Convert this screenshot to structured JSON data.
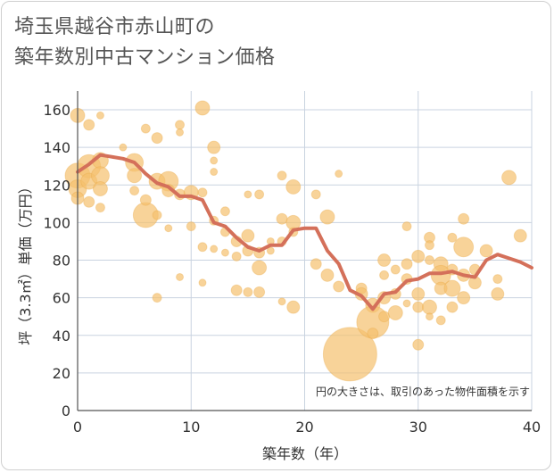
{
  "chart_data": {
    "type": "scatter",
    "title": "埼玉県越谷市赤山町の\n築年数別中古マンション価格",
    "title_lines": [
      "埼玉県越谷市赤山町の",
      "築年数別中古マンション価格"
    ],
    "xlabel": "築年数（年）",
    "ylabel": "坪（3.3㎡）単価（万円）",
    "annotation": "円の大きさは、取引のあった物件面積を示す",
    "xlim": [
      0,
      40
    ],
    "ylim": [
      0,
      170
    ],
    "x_ticks": [
      0,
      10,
      20,
      30,
      40
    ],
    "y_ticks": [
      0,
      20,
      40,
      60,
      80,
      100,
      120,
      140,
      160
    ],
    "grid": true,
    "colors": {
      "bubble": "#f5c06e",
      "line": "#d4705a",
      "grid": "#c9d3e0",
      "axis": "#555555"
    },
    "series": [
      {
        "kind": "bubbles",
        "points": [
          {
            "x": 0,
            "y": 157,
            "s": 8
          },
          {
            "x": 0,
            "y": 125,
            "s": 14
          },
          {
            "x": 0,
            "y": 118,
            "s": 10
          },
          {
            "x": 0,
            "y": 113,
            "s": 7
          },
          {
            "x": 1,
            "y": 152,
            "s": 6
          },
          {
            "x": 1,
            "y": 130,
            "s": 13
          },
          {
            "x": 1,
            "y": 122,
            "s": 9
          },
          {
            "x": 1,
            "y": 111,
            "s": 6
          },
          {
            "x": 2,
            "y": 157,
            "s": 4
          },
          {
            "x": 2,
            "y": 133,
            "s": 9
          },
          {
            "x": 2,
            "y": 125,
            "s": 10
          },
          {
            "x": 2,
            "y": 118,
            "s": 8
          },
          {
            "x": 2,
            "y": 108,
            "s": 5
          },
          {
            "x": 4,
            "y": 140,
            "s": 4
          },
          {
            "x": 5,
            "y": 132,
            "s": 10
          },
          {
            "x": 5,
            "y": 125,
            "s": 8
          },
          {
            "x": 5,
            "y": 117,
            "s": 5
          },
          {
            "x": 6,
            "y": 150,
            "s": 5
          },
          {
            "x": 6,
            "y": 104,
            "s": 14
          },
          {
            "x": 6,
            "y": 112,
            "s": 6
          },
          {
            "x": 7,
            "y": 145,
            "s": 6
          },
          {
            "x": 7,
            "y": 122,
            "s": 9
          },
          {
            "x": 7,
            "y": 104,
            "s": 5
          },
          {
            "x": 7,
            "y": 60,
            "s": 5
          },
          {
            "x": 8,
            "y": 122,
            "s": 11
          },
          {
            "x": 8,
            "y": 117,
            "s": 7
          },
          {
            "x": 8,
            "y": 97,
            "s": 4
          },
          {
            "x": 9,
            "y": 152,
            "s": 5
          },
          {
            "x": 9,
            "y": 148,
            "s": 4
          },
          {
            "x": 9,
            "y": 115,
            "s": 6
          },
          {
            "x": 9,
            "y": 71,
            "s": 4
          },
          {
            "x": 10,
            "y": 116,
            "s": 8
          },
          {
            "x": 10,
            "y": 98,
            "s": 5
          },
          {
            "x": 11,
            "y": 161,
            "s": 8
          },
          {
            "x": 11,
            "y": 116,
            "s": 5
          },
          {
            "x": 11,
            "y": 87,
            "s": 5
          },
          {
            "x": 11,
            "y": 68,
            "s": 4
          },
          {
            "x": 12,
            "y": 140,
            "s": 7
          },
          {
            "x": 12,
            "y": 133,
            "s": 4
          },
          {
            "x": 12,
            "y": 127,
            "s": 4
          },
          {
            "x": 12,
            "y": 101,
            "s": 5
          },
          {
            "x": 12,
            "y": 86,
            "s": 4
          },
          {
            "x": 13,
            "y": 106,
            "s": 5
          },
          {
            "x": 13,
            "y": 95,
            "s": 5
          },
          {
            "x": 13,
            "y": 84,
            "s": 4
          },
          {
            "x": 14,
            "y": 90,
            "s": 6
          },
          {
            "x": 14,
            "y": 82,
            "s": 5
          },
          {
            "x": 14,
            "y": 64,
            "s": 6
          },
          {
            "x": 15,
            "y": 115,
            "s": 4
          },
          {
            "x": 15,
            "y": 93,
            "s": 7
          },
          {
            "x": 15,
            "y": 85,
            "s": 6
          },
          {
            "x": 15,
            "y": 63,
            "s": 5
          },
          {
            "x": 16,
            "y": 115,
            "s": 5
          },
          {
            "x": 16,
            "y": 84,
            "s": 6
          },
          {
            "x": 16,
            "y": 76,
            "s": 8
          },
          {
            "x": 16,
            "y": 63,
            "s": 6
          },
          {
            "x": 17,
            "y": 90,
            "s": 4
          },
          {
            "x": 17,
            "y": 85,
            "s": 4
          },
          {
            "x": 18,
            "y": 125,
            "s": 5
          },
          {
            "x": 18,
            "y": 102,
            "s": 6
          },
          {
            "x": 18,
            "y": 90,
            "s": 5
          },
          {
            "x": 18,
            "y": 58,
            "s": 4
          },
          {
            "x": 19,
            "y": 119,
            "s": 8
          },
          {
            "x": 19,
            "y": 100,
            "s": 8
          },
          {
            "x": 19,
            "y": 95,
            "s": 5
          },
          {
            "x": 19,
            "y": 55,
            "s": 7
          },
          {
            "x": 21,
            "y": 115,
            "s": 5
          },
          {
            "x": 21,
            "y": 78,
            "s": 6
          },
          {
            "x": 22,
            "y": 103,
            "s": 8
          },
          {
            "x": 22,
            "y": 72,
            "s": 7
          },
          {
            "x": 23,
            "y": 126,
            "s": 4
          },
          {
            "x": 23,
            "y": 66,
            "s": 6
          },
          {
            "x": 24,
            "y": 30,
            "s": 30
          },
          {
            "x": 25,
            "y": 65,
            "s": 6
          },
          {
            "x": 25,
            "y": 62,
            "s": 7
          },
          {
            "x": 26,
            "y": 56,
            "s": 8
          },
          {
            "x": 26,
            "y": 47,
            "s": 18
          },
          {
            "x": 26,
            "y": 41,
            "s": 6
          },
          {
            "x": 27,
            "y": 80,
            "s": 7
          },
          {
            "x": 27,
            "y": 72,
            "s": 5
          },
          {
            "x": 27,
            "y": 60,
            "s": 7
          },
          {
            "x": 27,
            "y": 50,
            "s": 6
          },
          {
            "x": 28,
            "y": 75,
            "s": 5
          },
          {
            "x": 28,
            "y": 62,
            "s": 6
          },
          {
            "x": 28,
            "y": 52,
            "s": 8
          },
          {
            "x": 29,
            "y": 98,
            "s": 5
          },
          {
            "x": 29,
            "y": 78,
            "s": 6
          },
          {
            "x": 29,
            "y": 70,
            "s": 6
          },
          {
            "x": 29,
            "y": 57,
            "s": 4
          },
          {
            "x": 30,
            "y": 82,
            "s": 7
          },
          {
            "x": 30,
            "y": 62,
            "s": 7
          },
          {
            "x": 30,
            "y": 55,
            "s": 6
          },
          {
            "x": 30,
            "y": 35,
            "s": 6
          },
          {
            "x": 31,
            "y": 92,
            "s": 6
          },
          {
            "x": 31,
            "y": 88,
            "s": 5
          },
          {
            "x": 31,
            "y": 80,
            "s": 5
          },
          {
            "x": 31,
            "y": 55,
            "s": 8
          },
          {
            "x": 31,
            "y": 50,
            "s": 4
          },
          {
            "x": 32,
            "y": 78,
            "s": 8
          },
          {
            "x": 32,
            "y": 72,
            "s": 11
          },
          {
            "x": 32,
            "y": 65,
            "s": 7
          },
          {
            "x": 32,
            "y": 48,
            "s": 5
          },
          {
            "x": 33,
            "y": 92,
            "s": 5
          },
          {
            "x": 33,
            "y": 75,
            "s": 6
          },
          {
            "x": 33,
            "y": 65,
            "s": 9
          },
          {
            "x": 33,
            "y": 55,
            "s": 6
          },
          {
            "x": 34,
            "y": 102,
            "s": 6
          },
          {
            "x": 34,
            "y": 87,
            "s": 11
          },
          {
            "x": 34,
            "y": 72,
            "s": 7
          },
          {
            "x": 34,
            "y": 60,
            "s": 7
          },
          {
            "x": 35,
            "y": 75,
            "s": 6
          },
          {
            "x": 35,
            "y": 68,
            "s": 7
          },
          {
            "x": 36,
            "y": 85,
            "s": 7
          },
          {
            "x": 37,
            "y": 70,
            "s": 5
          },
          {
            "x": 37,
            "y": 62,
            "s": 7
          },
          {
            "x": 38,
            "y": 124,
            "s": 8
          },
          {
            "x": 39,
            "y": 93,
            "s": 7
          }
        ]
      },
      {
        "kind": "line",
        "points": [
          {
            "x": 0,
            "y": 127
          },
          {
            "x": 1,
            "y": 131
          },
          {
            "x": 2,
            "y": 136
          },
          {
            "x": 3,
            "y": 135
          },
          {
            "x": 4,
            "y": 134
          },
          {
            "x": 5,
            "y": 132
          },
          {
            "x": 6,
            "y": 126
          },
          {
            "x": 7,
            "y": 121
          },
          {
            "x": 8,
            "y": 119
          },
          {
            "x": 9,
            "y": 114
          },
          {
            "x": 10,
            "y": 114
          },
          {
            "x": 11,
            "y": 112
          },
          {
            "x": 12,
            "y": 100
          },
          {
            "x": 13,
            "y": 98
          },
          {
            "x": 14,
            "y": 92
          },
          {
            "x": 15,
            "y": 87
          },
          {
            "x": 16,
            "y": 85
          },
          {
            "x": 17,
            "y": 88
          },
          {
            "x": 18,
            "y": 88
          },
          {
            "x": 19,
            "y": 96
          },
          {
            "x": 20,
            "y": 97
          },
          {
            "x": 21,
            "y": 97
          },
          {
            "x": 22,
            "y": 85
          },
          {
            "x": 23,
            "y": 78
          },
          {
            "x": 24,
            "y": 64
          },
          {
            "x": 25,
            "y": 61
          },
          {
            "x": 26,
            "y": 54
          },
          {
            "x": 27,
            "y": 62
          },
          {
            "x": 28,
            "y": 63
          },
          {
            "x": 29,
            "y": 69
          },
          {
            "x": 30,
            "y": 70
          },
          {
            "x": 31,
            "y": 73
          },
          {
            "x": 32,
            "y": 73
          },
          {
            "x": 33,
            "y": 74
          },
          {
            "x": 34,
            "y": 72
          },
          {
            "x": 35,
            "y": 71
          },
          {
            "x": 36,
            "y": 80
          },
          {
            "x": 37,
            "y": 83
          },
          {
            "x": 38,
            "y": 81
          },
          {
            "x": 39,
            "y": 79
          },
          {
            "x": 40,
            "y": 76
          }
        ]
      }
    ]
  }
}
